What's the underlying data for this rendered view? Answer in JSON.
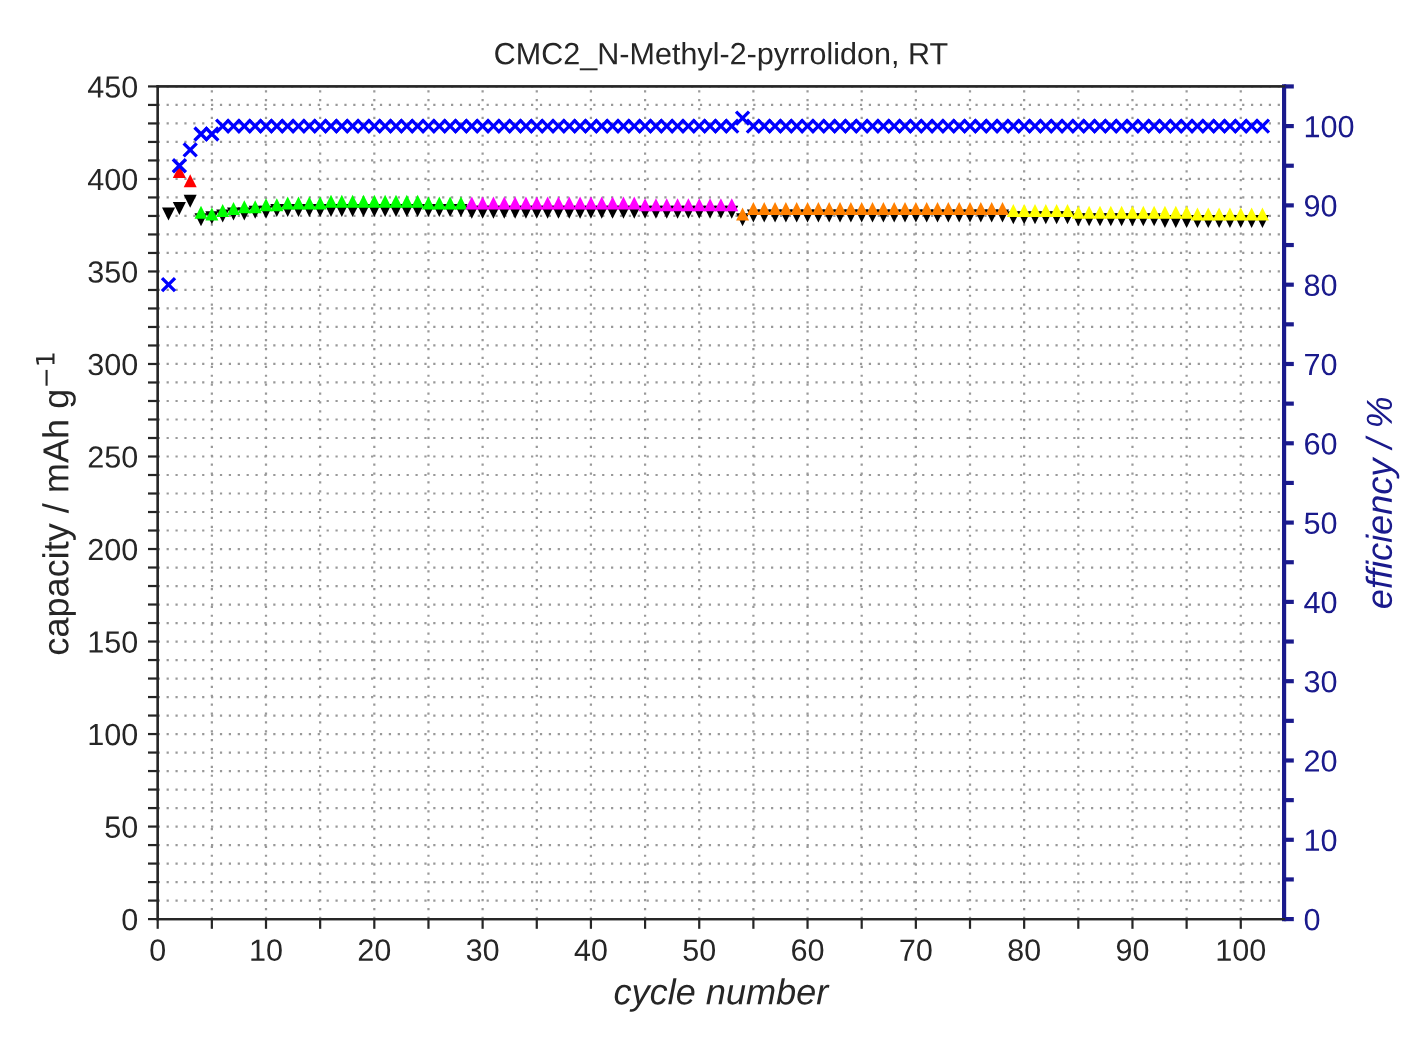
{
  "chart_data": {
    "type": "scatter",
    "title": "CMC2_N-Methyl-2-pyrrolidon, RT",
    "xlabel": "cycle number",
    "ylabel": "capacity / mAh g$^{−1}$",
    "y2label": "efficiency / %",
    "xlim": [
      0,
      104
    ],
    "xticks": [
      0,
      {
        "value": 5,
        "label": null
      },
      10,
      {
        "value": 15,
        "label": null
      },
      20,
      {
        "value": 25,
        "label": null
      },
      30,
      {
        "value": 35,
        "label": null
      },
      40,
      {
        "value": 45,
        "label": null
      },
      50,
      {
        "value": 55,
        "label": null
      },
      60,
      {
        "value": 65,
        "label": null
      },
      70,
      {
        "value": 75,
        "label": null
      },
      80,
      {
        "value": 85,
        "label": null
      },
      90,
      {
        "value": 95,
        "label": null
      },
      100
    ],
    "ylim": [
      0,
      450
    ],
    "yticks": [
      0,
      {
        "value": 10,
        "label": null
      },
      {
        "value": 20,
        "label": null
      },
      {
        "value": 30,
        "label": null
      },
      {
        "value": 40,
        "label": null
      },
      50,
      {
        "value": 60,
        "label": null
      },
      {
        "value": 70,
        "label": null
      },
      {
        "value": 80,
        "label": null
      },
      {
        "value": 90,
        "label": null
      },
      100,
      {
        "value": 110,
        "label": null
      },
      {
        "value": 120,
        "label": null
      },
      {
        "value": 130,
        "label": null
      },
      {
        "value": 140,
        "label": null
      },
      150,
      {
        "value": 160,
        "label": null
      },
      {
        "value": 170,
        "label": null
      },
      {
        "value": 180,
        "label": null
      },
      {
        "value": 190,
        "label": null
      },
      200,
      {
        "value": 210,
        "label": null
      },
      {
        "value": 220,
        "label": null
      },
      {
        "value": 230,
        "label": null
      },
      {
        "value": 240,
        "label": null
      },
      250,
      {
        "value": 260,
        "label": null
      },
      {
        "value": 270,
        "label": null
      },
      {
        "value": 280,
        "label": null
      },
      {
        "value": 290,
        "label": null
      },
      300,
      {
        "value": 310,
        "label": null
      },
      {
        "value": 320,
        "label": null
      },
      {
        "value": 330,
        "label": null
      },
      {
        "value": 340,
        "label": null
      },
      350,
      {
        "value": 360,
        "label": null
      },
      {
        "value": 370,
        "label": null
      },
      {
        "value": 380,
        "label": null
      },
      {
        "value": 390,
        "label": null
      },
      400,
      {
        "value": 410,
        "label": null
      },
      {
        "value": 420,
        "label": null
      },
      {
        "value": 430,
        "label": null
      },
      {
        "value": 440,
        "label": null
      },
      450
    ],
    "y2lim": [
      0,
      105
    ],
    "y2ticks": [
      0,
      {
        "value": 5,
        "label": null
      },
      10,
      {
        "value": 15,
        "label": null
      },
      20,
      {
        "value": 25,
        "label": null
      },
      30,
      {
        "value": 35,
        "label": null
      },
      40,
      {
        "value": 45,
        "label": null
      },
      50,
      {
        "value": 55,
        "label": null
      },
      60,
      {
        "value": 65,
        "label": null
      },
      70,
      {
        "value": 75,
        "label": null
      },
      80,
      {
        "value": 85,
        "label": null
      },
      90,
      {
        "value": 95,
        "label": null
      },
      100,
      {
        "value": 105,
        "label": null
      }
    ],
    "grid": true,
    "legend": false,
    "series": [
      {
        "color": "#000000",
        "marker": "triangle_down",
        "x": [
          1,
          2,
          3,
          4,
          5,
          6,
          7,
          8,
          9,
          10,
          11,
          12,
          13,
          14,
          15,
          16,
          17,
          18,
          19,
          20,
          21,
          22,
          23,
          24,
          25,
          26,
          27,
          28,
          29,
          30,
          31,
          32,
          33,
          34,
          35,
          36,
          37,
          38,
          39,
          40,
          41,
          42,
          43,
          44,
          45,
          46,
          47,
          48,
          49,
          50,
          51,
          52,
          53,
          54,
          55,
          56,
          57,
          58,
          59,
          60,
          61,
          62,
          63,
          64,
          65,
          66,
          67,
          68,
          69,
          70,
          71,
          72,
          73,
          74,
          75,
          76,
          77,
          78,
          79,
          80,
          81,
          82,
          83,
          84,
          85,
          86,
          87,
          88,
          89,
          90,
          91,
          92,
          93,
          94,
          95,
          96,
          97,
          98,
          99,
          100,
          101,
          102
        ],
        "values": [
          381,
          384,
          388,
          378,
          379,
          380,
          381,
          381,
          382,
          382,
          383,
          383,
          383,
          383,
          383,
          383,
          383,
          383,
          383,
          383,
          383,
          383,
          383,
          383,
          383,
          383,
          383,
          383,
          382,
          382,
          382,
          382,
          382,
          382,
          382,
          382,
          382,
          382,
          382,
          382,
          382,
          382,
          382,
          382,
          382,
          382,
          382,
          382,
          382,
          382,
          382,
          382,
          382,
          378,
          380,
          380,
          380,
          380,
          380,
          380,
          380,
          380,
          380,
          380,
          380,
          380,
          380,
          380,
          380,
          380,
          380,
          380,
          380,
          380,
          380,
          380,
          380,
          380,
          379,
          379,
          379,
          379,
          379,
          379,
          378,
          378,
          378,
          378,
          378,
          378,
          378,
          378,
          377,
          377,
          377,
          377,
          377,
          377,
          377,
          377,
          377,
          377
        ]
      },
      {
        "color": "#ff0000",
        "marker": "triangle",
        "x": [
          2,
          3
        ],
        "values": [
          404,
          399
        ]
      },
      {
        "color": "#00ff00",
        "marker": "triangle",
        "x": [
          4,
          5,
          6,
          7,
          8,
          9,
          10,
          11,
          12,
          13,
          14,
          15,
          16,
          17,
          18,
          19,
          20,
          21,
          22,
          23,
          24,
          25,
          26,
          27,
          28
        ],
        "values": [
          382,
          381,
          383,
          384,
          385,
          385,
          386,
          386,
          387,
          387,
          387,
          387,
          388,
          388,
          388,
          388,
          388,
          388,
          388,
          388,
          388,
          387,
          387,
          387,
          387
        ]
      },
      {
        "color": "#ff00ff",
        "marker": "triangle",
        "x": [
          29,
          30,
          31,
          32,
          33,
          34,
          35,
          36,
          37,
          38,
          39,
          40,
          41,
          42,
          43,
          44,
          45,
          46,
          47,
          48,
          49,
          50,
          51,
          52,
          53
        ],
        "values": [
          387,
          387,
          387,
          387,
          387,
          387,
          387,
          387,
          387,
          387,
          387,
          387,
          387,
          387,
          387,
          387,
          386,
          386,
          386,
          386,
          386,
          386,
          386,
          386,
          386
        ]
      },
      {
        "color": "#ff8000",
        "marker": "triangle",
        "x": [
          54,
          55,
          56,
          57,
          58,
          59,
          60,
          61,
          62,
          63,
          64,
          65,
          66,
          67,
          68,
          69,
          70,
          71,
          72,
          73,
          74,
          75,
          76,
          77,
          78
        ],
        "values": [
          381,
          384,
          384,
          384,
          384,
          384,
          384,
          384,
          384,
          384,
          384,
          384,
          384,
          384,
          384,
          384,
          384,
          384,
          384,
          384,
          384,
          384,
          384,
          384,
          384
        ]
      },
      {
        "color": "#ffff00",
        "marker": "triangle",
        "x": [
          79,
          80,
          81,
          82,
          83,
          84,
          85,
          86,
          87,
          88,
          89,
          90,
          91,
          92,
          93,
          94,
          95,
          96,
          97,
          98,
          99,
          100,
          101,
          102
        ],
        "values": [
          383,
          383,
          383,
          383,
          383,
          383,
          382,
          382,
          382,
          382,
          382,
          382,
          382,
          382,
          382,
          382,
          382,
          381,
          381,
          381,
          381,
          381,
          381,
          381
        ]
      },
      {
        "color": "#0000ff",
        "marker": "cross",
        "axis": "y2",
        "x": [
          1,
          2,
          3,
          4,
          5,
          6,
          7,
          8,
          9,
          10,
          11,
          12,
          13,
          14,
          15,
          16,
          17,
          18,
          19,
          20,
          21,
          22,
          23,
          24,
          25,
          26,
          27,
          28,
          29,
          30,
          31,
          32,
          33,
          34,
          35,
          36,
          37,
          38,
          39,
          40,
          41,
          42,
          43,
          44,
          45,
          46,
          47,
          48,
          49,
          50,
          51,
          52,
          53,
          54,
          55,
          56,
          57,
          58,
          59,
          60,
          61,
          62,
          63,
          64,
          65,
          66,
          67,
          68,
          69,
          70,
          71,
          72,
          73,
          74,
          75,
          76,
          77,
          78,
          79,
          80,
          81,
          82,
          83,
          84,
          85,
          86,
          87,
          88,
          89,
          90,
          91,
          92,
          93,
          94,
          95,
          96,
          97,
          98,
          99,
          100,
          101,
          102
        ],
        "values": [
          80,
          95,
          97,
          99,
          99,
          100,
          100,
          100,
          100,
          100,
          100,
          100,
          100,
          100,
          100,
          100,
          100,
          100,
          100,
          100,
          100,
          100,
          100,
          100,
          100,
          100,
          100,
          100,
          100,
          100,
          100,
          100,
          100,
          100,
          100,
          100,
          100,
          100,
          100,
          100,
          100,
          100,
          100,
          100,
          100,
          100,
          100,
          100,
          100,
          100,
          100,
          100,
          100,
          101,
          100,
          100,
          100,
          100,
          100,
          100,
          100,
          100,
          100,
          100,
          100,
          100,
          100,
          100,
          100,
          100,
          100,
          100,
          100,
          100,
          100,
          100,
          100,
          100,
          100,
          100,
          100,
          100,
          100,
          100,
          100,
          100,
          100,
          100,
          100,
          100,
          100,
          100,
          100,
          100,
          100,
          100,
          100,
          100,
          100,
          100,
          100,
          100
        ]
      }
    ]
  }
}
